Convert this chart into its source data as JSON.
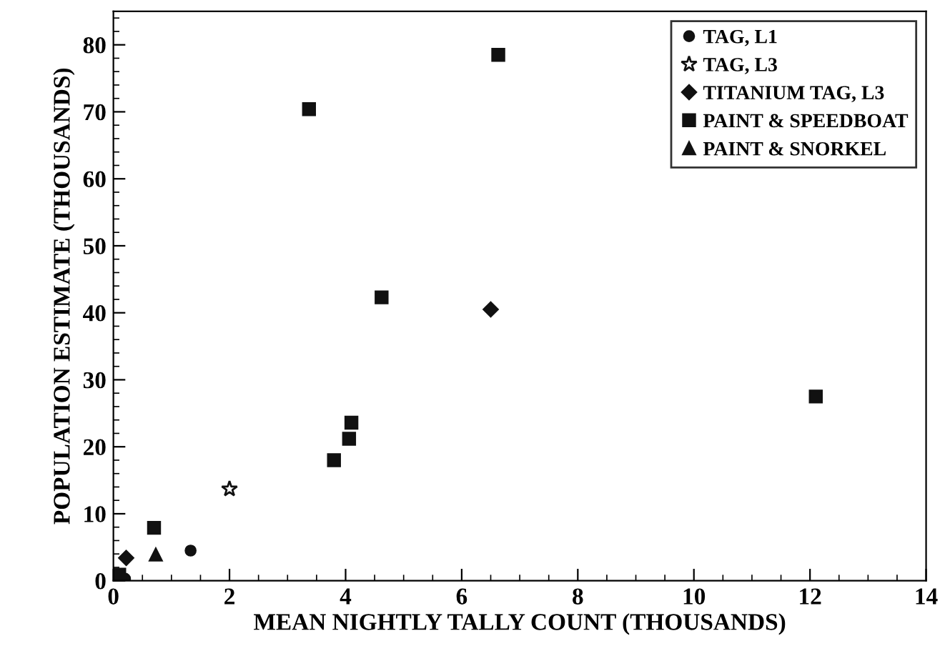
{
  "chart_data": {
    "type": "scatter",
    "xlabel": "MEAN NIGHTLY TALLY COUNT (THOUSANDS)",
    "ylabel": "POPULATION ESTIMATE (THOUSANDS)",
    "xlim": [
      0,
      14
    ],
    "ylim": [
      0,
      85
    ],
    "xticks": [
      0,
      2,
      4,
      6,
      8,
      10,
      12,
      14
    ],
    "yticks": [
      0,
      10,
      20,
      30,
      40,
      50,
      60,
      70,
      80
    ],
    "legend": "top right",
    "grid": false,
    "series": [
      {
        "name": "TAG, L1",
        "color": "#111111",
        "marker": "circle",
        "x": [
          1.33,
          0.2
        ],
        "values": [
          4.5,
          0.3
        ]
      },
      {
        "name": "TAG, L3",
        "color": "#111111",
        "marker": "star",
        "x": [
          2.0
        ],
        "values": [
          13.7
        ]
      },
      {
        "name": "TITANIUM TAG, L3",
        "color": "#111111",
        "marker": "diamond",
        "x": [
          0.22,
          6.5
        ],
        "values": [
          3.4,
          40.5
        ]
      },
      {
        "name": "PAINT & SPEEDBOAT",
        "color": "#111111",
        "marker": "square",
        "x": [
          0.1,
          0.7,
          3.37,
          6.63,
          4.62,
          3.8,
          4.06,
          4.1,
          12.1
        ],
        "values": [
          0.9,
          7.9,
          70.4,
          78.5,
          42.3,
          18.0,
          21.2,
          23.6,
          27.5
        ]
      },
      {
        "name": "PAINT & SNORKEL",
        "color": "#111111",
        "marker": "triangle",
        "x": [
          0.73
        ],
        "values": [
          3.9
        ]
      }
    ]
  }
}
